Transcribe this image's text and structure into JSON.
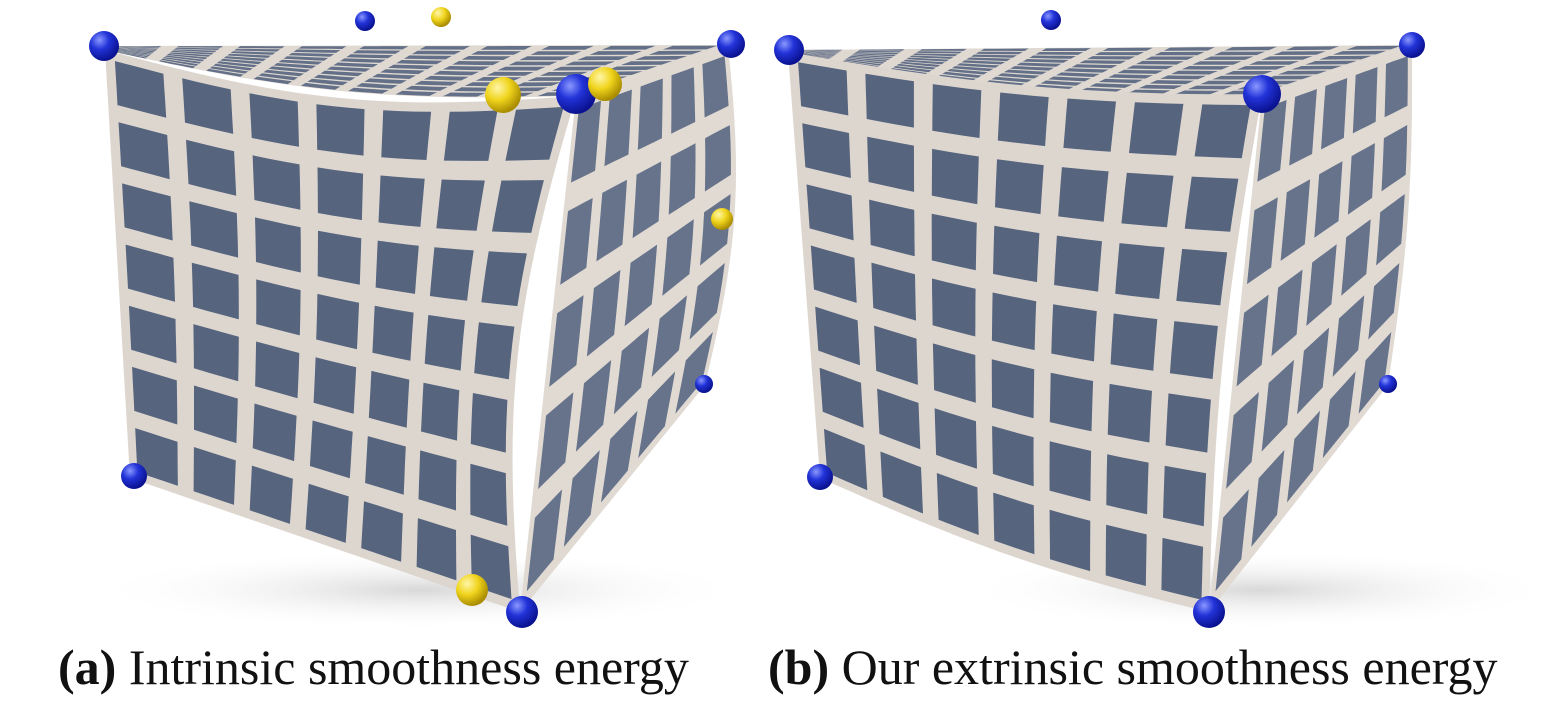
{
  "panels": [
    {
      "id": "a",
      "label": "(a)",
      "caption": "Intrinsic smoothness energy",
      "handles": {
        "fixed_color": "blue",
        "moved_color": "yellow"
      }
    },
    {
      "id": "b",
      "label": "(b)",
      "caption": "Our extrinsic smoothness energy",
      "handles": {
        "fixed_color": "blue"
      }
    }
  ],
  "colors": {
    "tile": "#56647e",
    "grout": "#ddd6cf",
    "shadow": "#e4e4e4",
    "fixed_handle": "#1f2fd0",
    "moved_handle": "#f0d41c"
  }
}
